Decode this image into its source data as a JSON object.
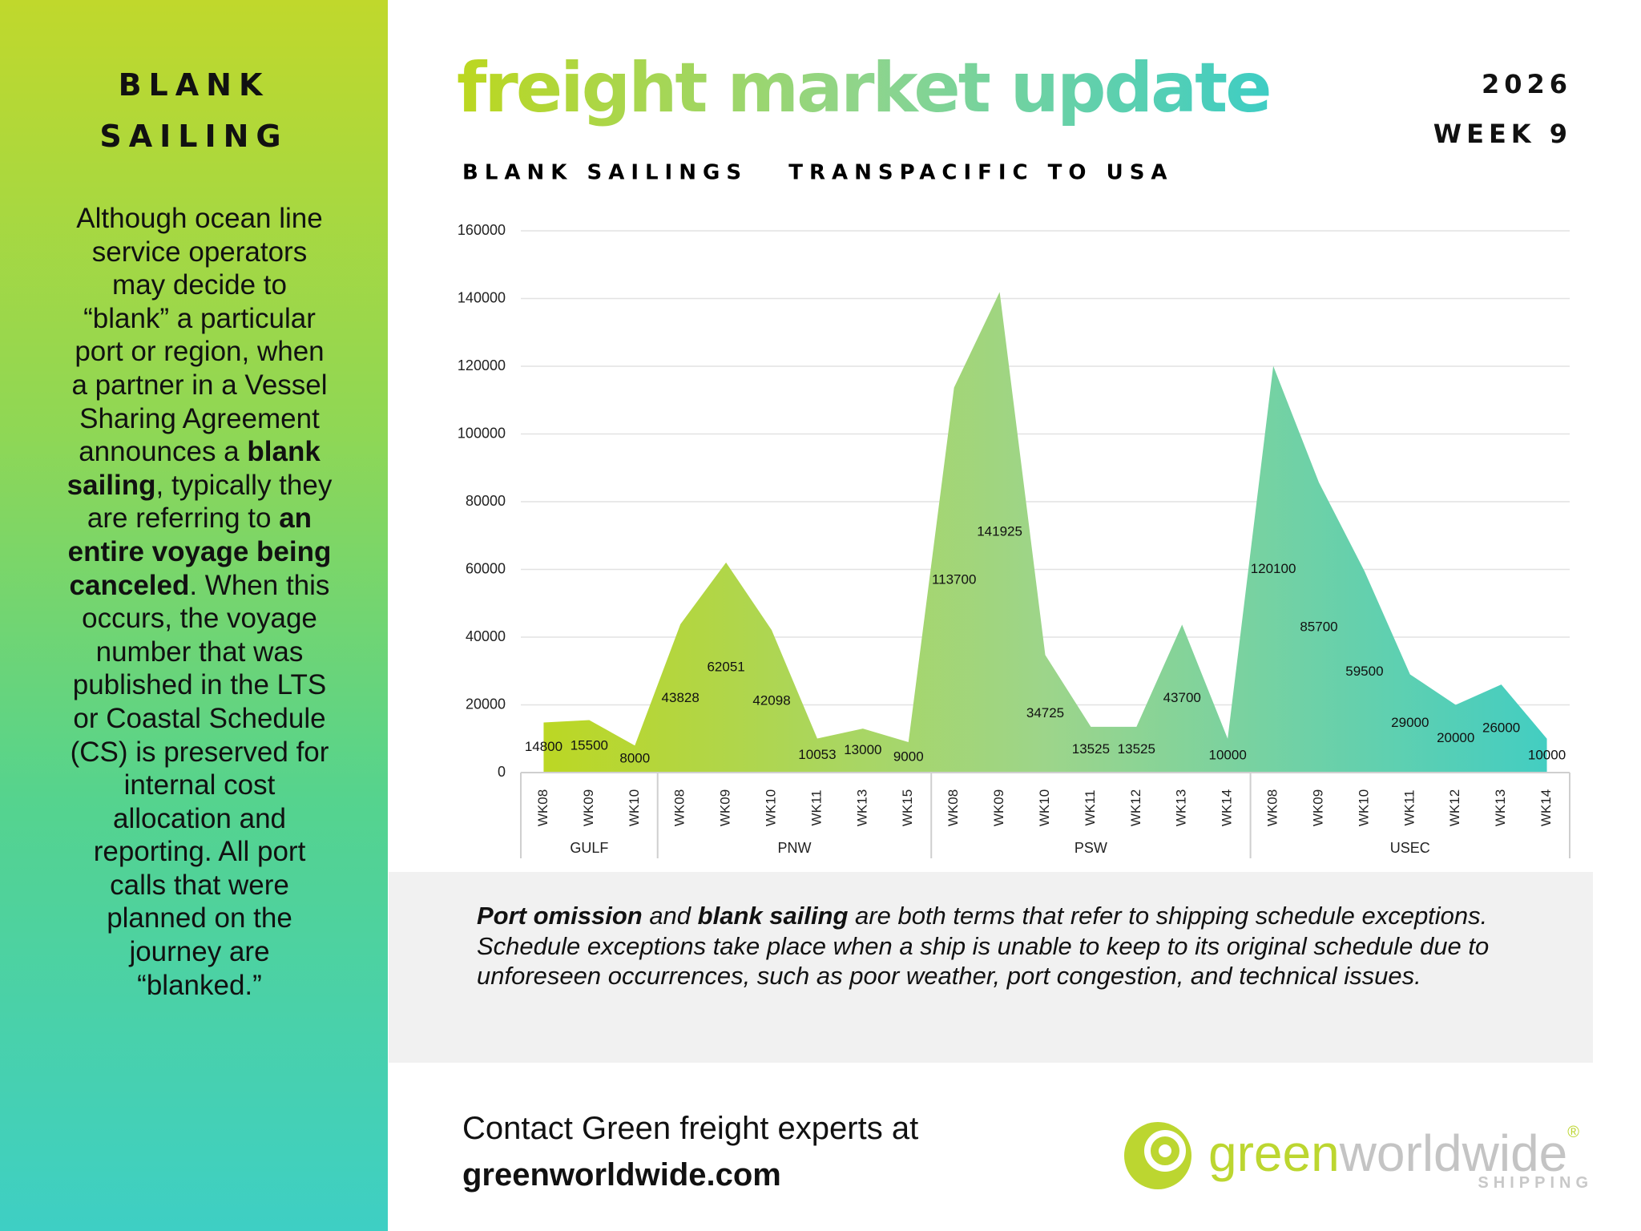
{
  "sidebar": {
    "title": [
      "BLANK",
      "SAILING"
    ],
    "paragraph": [
      {
        "text": "Although ocean line service operators may decide to “blank” a particular port or region, when a partner in a Vessel Sharing Agreement announces a ",
        "bold": false
      },
      {
        "text": "blank sailing",
        "bold": true
      },
      {
        "text": ", typically they are referring to ",
        "bold": false
      },
      {
        "text": "an entire voyage being canceled",
        "bold": true
      },
      {
        "text": ". When this occurs, the voyage number that was published in the LTS or Coastal Schedule (CS) is preserved for internal cost allocation and reporting. All port calls that were planned on the journey are “blanked.”",
        "bold": false
      }
    ]
  },
  "header": {
    "title": "freight market update",
    "edition": [
      "2026",
      "WEEK 9"
    ]
  },
  "chart_data": {
    "type": "area",
    "subtitle": "BLANK SAILINGS   TRANSPACIFIC TO USA",
    "groups": [
      {
        "name": "GULF",
        "categories": [
          "WK08",
          "WK09",
          "WK10"
        ]
      },
      {
        "name": "PNW",
        "categories": [
          "WK08",
          "WK09",
          "WK10",
          "WK11",
          "WK13",
          "WK15"
        ]
      },
      {
        "name": "PSW",
        "categories": [
          "WK08",
          "WK09",
          "WK10",
          "WK11",
          "WK12",
          "WK13",
          "WK14"
        ]
      },
      {
        "name": "USEC",
        "categories": [
          "WK08",
          "WK09",
          "WK10",
          "WK11",
          "WK12",
          "WK13",
          "WK14"
        ]
      }
    ],
    "values": [
      14800,
      15500,
      8000,
      43828,
      62051,
      42098,
      10053,
      13000,
      9000,
      113700,
      141925,
      34725,
      13525,
      13525,
      43700,
      10000,
      120100,
      85700,
      59500,
      29000,
      20000,
      26000,
      10000
    ],
    "colors": [
      "#bdd71f",
      "#9dd58a",
      "#3fcdc4"
    ],
    "ylim": [
      0,
      160000
    ],
    "yticks": [
      0,
      20000,
      40000,
      60000,
      80000,
      100000,
      120000,
      140000,
      160000
    ],
    "grid": true
  },
  "note": [
    {
      "text": "Port omission",
      "bold": true
    },
    {
      "text": " and ",
      "bold": false
    },
    {
      "text": "blank sailing",
      "bold": true
    },
    {
      "text": " are both terms that refer to shipping schedule exceptions. Schedule exceptions take place when a ship is unable to keep to its original schedule due to unforeseen occurrences, such as poor weather, port congestion, and technical issues.",
      "bold": false
    }
  ],
  "contact": [
    "Contact Green freight experts at",
    "greenworldwide.com"
  ],
  "logo": {
    "name": [
      "green",
      "worldwide"
    ],
    "registered": "®",
    "tagline": "SHIPPING"
  }
}
